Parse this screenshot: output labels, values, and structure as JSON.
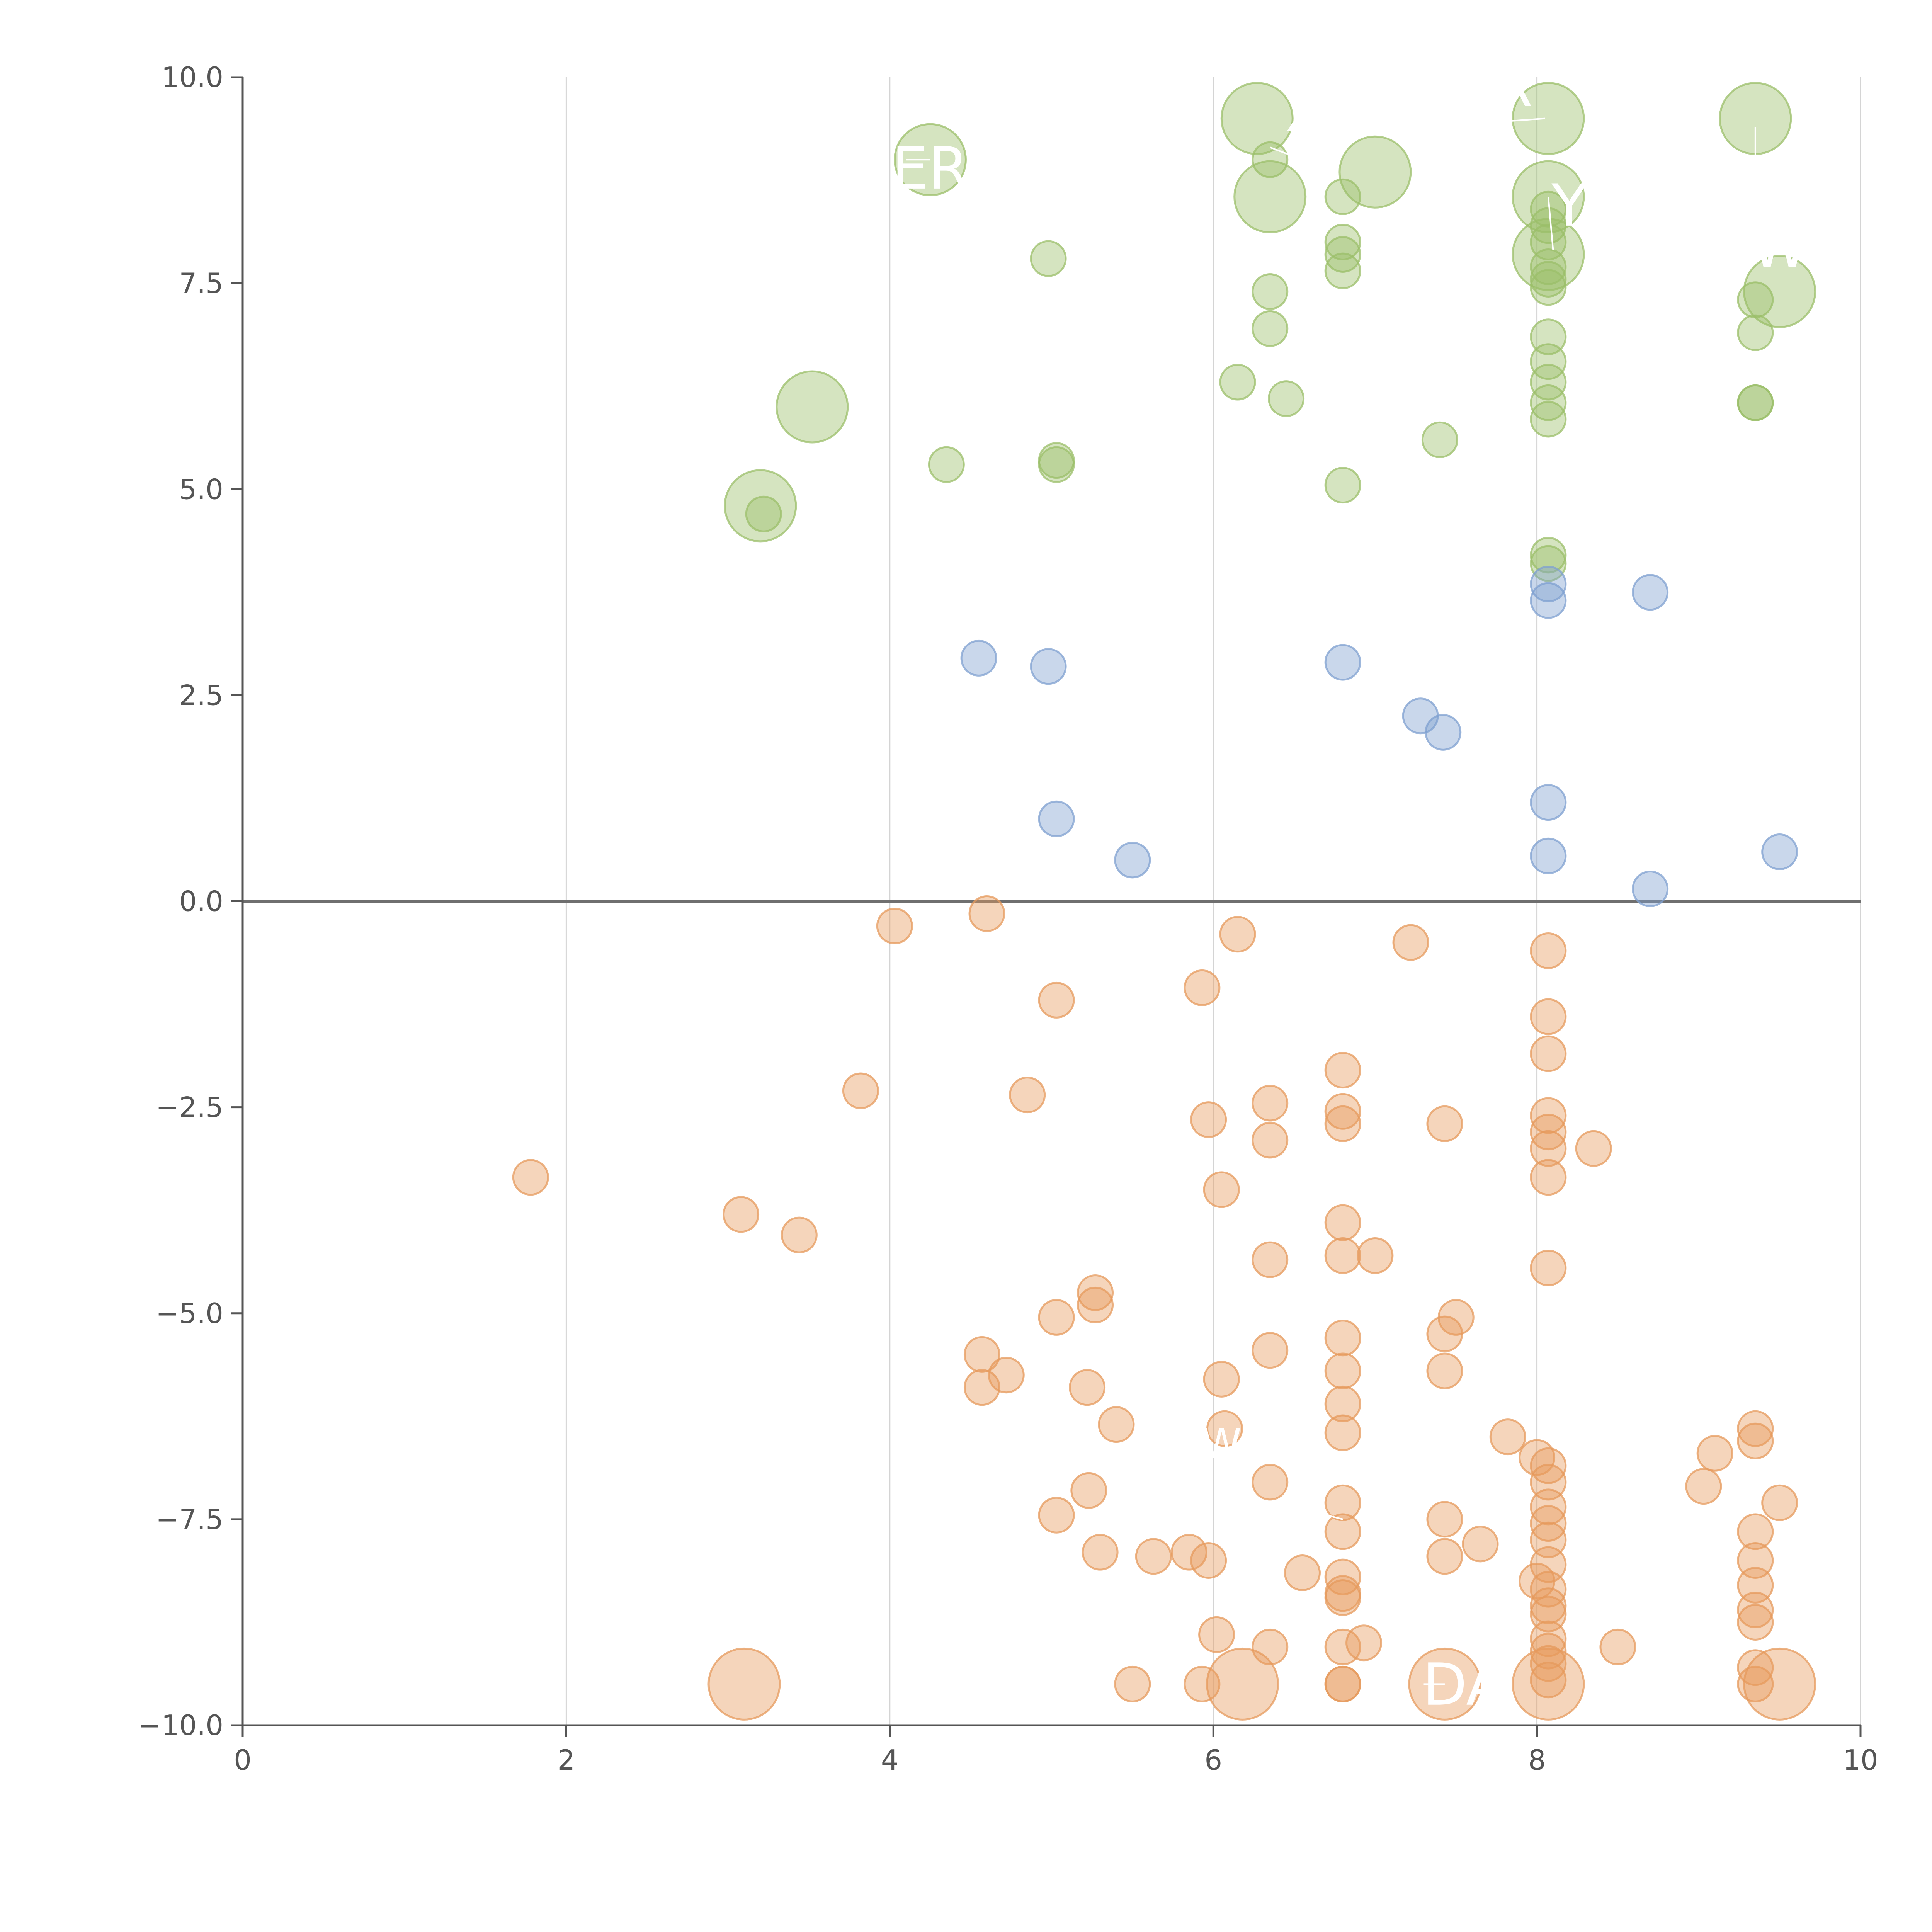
{
  "chart_data": {
    "type": "scatter",
    "title": "",
    "xlabel": "",
    "ylabel": "",
    "xlim": [
      0,
      10
    ],
    "ylim": [
      -10,
      10
    ],
    "x_ticks": [
      "0",
      "2",
      "4",
      "6",
      "8",
      "10"
    ],
    "y_ticks": [
      "10.0",
      "7.5",
      "5.0",
      "2.5",
      "0.0",
      "−2.5",
      "−5.0",
      "−7.5",
      "−10.0"
    ],
    "grid": "vertical",
    "legend": "none",
    "colors": {
      "green": "#9bbf6a",
      "blue": "#7fa0d0",
      "orange": "#e69a5c",
      "axis": "#555555",
      "grid": "#d4d4d4",
      "zero_line": "#6f6f6f"
    },
    "series": [
      {
        "color": "green",
        "points": [
          {
            "x": 4.25,
            "y": 9.0,
            "s": 2
          },
          {
            "x": 6.27,
            "y": 9.5,
            "s": 2
          },
          {
            "x": 6.35,
            "y": 9.0,
            "s": 1
          },
          {
            "x": 6.8,
            "y": 8.55,
            "s": 1
          },
          {
            "x": 6.35,
            "y": 8.55,
            "s": 2
          },
          {
            "x": 7.0,
            "y": 8.85,
            "s": 2
          },
          {
            "x": 8.07,
            "y": 9.5,
            "s": 2
          },
          {
            "x": 9.35,
            "y": 9.5,
            "s": 2
          },
          {
            "x": 8.07,
            "y": 8.55,
            "s": 2
          },
          {
            "x": 8.07,
            "y": 8.4,
            "s": 1
          },
          {
            "x": 8.07,
            "y": 8.2,
            "s": 1
          },
          {
            "x": 8.07,
            "y": 8.0,
            "s": 1
          },
          {
            "x": 8.07,
            "y": 7.85,
            "s": 2
          },
          {
            "x": 8.07,
            "y": 7.7,
            "s": 1
          },
          {
            "x": 8.07,
            "y": 7.55,
            "s": 1
          },
          {
            "x": 8.07,
            "y": 7.45,
            "s": 1
          },
          {
            "x": 6.8,
            "y": 8.0,
            "s": 1
          },
          {
            "x": 6.8,
            "y": 7.85,
            "s": 1
          },
          {
            "x": 6.8,
            "y": 7.65,
            "s": 1
          },
          {
            "x": 4.98,
            "y": 7.8,
            "s": 1
          },
          {
            "x": 6.35,
            "y": 7.4,
            "s": 1
          },
          {
            "x": 6.35,
            "y": 6.95,
            "s": 1
          },
          {
            "x": 9.35,
            "y": 7.3,
            "s": 1
          },
          {
            "x": 9.5,
            "y": 7.4,
            "s": 2
          },
          {
            "x": 9.35,
            "y": 6.9,
            "s": 1
          },
          {
            "x": 8.07,
            "y": 6.85,
            "s": 1
          },
          {
            "x": 8.07,
            "y": 6.55,
            "s": 1
          },
          {
            "x": 8.07,
            "y": 6.3,
            "s": 1
          },
          {
            "x": 8.07,
            "y": 6.05,
            "s": 1
          },
          {
            "x": 8.07,
            "y": 5.85,
            "s": 1
          },
          {
            "x": 6.15,
            "y": 6.3,
            "s": 1
          },
          {
            "x": 6.45,
            "y": 6.1,
            "s": 1
          },
          {
            "x": 9.35,
            "y": 6.05,
            "s": 1
          },
          {
            "x": 9.35,
            "y": 6.05,
            "s": 1
          },
          {
            "x": 3.52,
            "y": 6.0,
            "s": 2
          },
          {
            "x": 7.4,
            "y": 5.6,
            "s": 1
          },
          {
            "x": 4.35,
            "y": 5.3,
            "s": 1
          },
          {
            "x": 5.03,
            "y": 5.35,
            "s": 1
          },
          {
            "x": 5.03,
            "y": 5.3,
            "s": 1
          },
          {
            "x": 6.8,
            "y": 5.05,
            "s": 1
          },
          {
            "x": 3.2,
            "y": 4.8,
            "s": 2
          },
          {
            "x": 3.22,
            "y": 4.7,
            "s": 1
          },
          {
            "x": 8.07,
            "y": 4.2,
            "s": 1
          },
          {
            "x": 8.07,
            "y": 4.1,
            "s": 1
          }
        ]
      },
      {
        "color": "blue",
        "points": [
          {
            "x": 8.07,
            "y": 3.85,
            "s": 1
          },
          {
            "x": 8.07,
            "y": 3.65,
            "s": 1
          },
          {
            "x": 8.7,
            "y": 3.75,
            "s": 1
          },
          {
            "x": 4.55,
            "y": 2.95,
            "s": 1
          },
          {
            "x": 4.98,
            "y": 2.85,
            "s": 1
          },
          {
            "x": 6.8,
            "y": 2.9,
            "s": 1
          },
          {
            "x": 7.28,
            "y": 2.25,
            "s": 1
          },
          {
            "x": 7.42,
            "y": 2.05,
            "s": 1
          },
          {
            "x": 8.07,
            "y": 1.2,
            "s": 1
          },
          {
            "x": 5.03,
            "y": 1.0,
            "s": 1
          },
          {
            "x": 5.5,
            "y": 0.5,
            "s": 1
          },
          {
            "x": 8.07,
            "y": 0.55,
            "s": 1
          },
          {
            "x": 9.5,
            "y": 0.6,
            "s": 1
          },
          {
            "x": 8.7,
            "y": 0.15,
            "s": 1
          }
        ]
      },
      {
        "color": "orange",
        "points": [
          {
            "x": 4.03,
            "y": -0.3,
            "s": 1
          },
          {
            "x": 4.6,
            "y": -0.15,
            "s": 1
          },
          {
            "x": 6.15,
            "y": -0.4,
            "s": 1
          },
          {
            "x": 7.22,
            "y": -0.5,
            "s": 1
          },
          {
            "x": 8.07,
            "y": -0.6,
            "s": 1
          },
          {
            "x": 5.93,
            "y": -1.05,
            "s": 1
          },
          {
            "x": 5.03,
            "y": -1.2,
            "s": 1
          },
          {
            "x": 8.07,
            "y": -1.4,
            "s": 1
          },
          {
            "x": 8.07,
            "y": -1.85,
            "s": 1
          },
          {
            "x": 6.8,
            "y": -2.05,
            "s": 1
          },
          {
            "x": 3.82,
            "y": -2.3,
            "s": 1
          },
          {
            "x": 4.85,
            "y": -2.35,
            "s": 1
          },
          {
            "x": 6.35,
            "y": -2.45,
            "s": 1
          },
          {
            "x": 6.8,
            "y": -2.55,
            "s": 1
          },
          {
            "x": 6.8,
            "y": -2.7,
            "s": 1
          },
          {
            "x": 5.97,
            "y": -2.65,
            "s": 1
          },
          {
            "x": 7.43,
            "y": -2.7,
            "s": 1
          },
          {
            "x": 8.07,
            "y": -2.6,
            "s": 1
          },
          {
            "x": 8.07,
            "y": -2.8,
            "s": 1
          },
          {
            "x": 6.35,
            "y": -2.9,
            "s": 1
          },
          {
            "x": 8.07,
            "y": -3.0,
            "s": 1
          },
          {
            "x": 8.35,
            "y": -3.0,
            "s": 1
          },
          {
            "x": 1.78,
            "y": -3.35,
            "s": 1
          },
          {
            "x": 8.07,
            "y": -3.35,
            "s": 1
          },
          {
            "x": 6.05,
            "y": -3.5,
            "s": 1
          },
          {
            "x": 3.08,
            "y": -3.8,
            "s": 1
          },
          {
            "x": 3.44,
            "y": -4.05,
            "s": 1
          },
          {
            "x": 6.8,
            "y": -3.9,
            "s": 1
          },
          {
            "x": 6.8,
            "y": -4.3,
            "s": 1
          },
          {
            "x": 7.0,
            "y": -4.3,
            "s": 1
          },
          {
            "x": 6.35,
            "y": -4.35,
            "s": 1
          },
          {
            "x": 8.07,
            "y": -4.45,
            "s": 1
          },
          {
            "x": 5.27,
            "y": -4.75,
            "s": 1
          },
          {
            "x": 5.27,
            "y": -4.9,
            "s": 1
          },
          {
            "x": 5.03,
            "y": -5.05,
            "s": 1
          },
          {
            "x": 7.5,
            "y": -5.05,
            "s": 1
          },
          {
            "x": 7.43,
            "y": -5.25,
            "s": 1
          },
          {
            "x": 6.8,
            "y": -5.3,
            "s": 1
          },
          {
            "x": 6.35,
            "y": -5.45,
            "s": 1
          },
          {
            "x": 4.57,
            "y": -5.5,
            "s": 1
          },
          {
            "x": 7.43,
            "y": -5.7,
            "s": 1
          },
          {
            "x": 6.8,
            "y": -5.7,
            "s": 1
          },
          {
            "x": 4.72,
            "y": -5.75,
            "s": 1
          },
          {
            "x": 6.05,
            "y": -5.8,
            "s": 1
          },
          {
            "x": 4.57,
            "y": -5.9,
            "s": 1
          },
          {
            "x": 5.22,
            "y": -5.9,
            "s": 1
          },
          {
            "x": 6.8,
            "y": -6.1,
            "s": 1
          },
          {
            "x": 5.4,
            "y": -6.35,
            "s": 1
          },
          {
            "x": 6.8,
            "y": -6.45,
            "s": 1
          },
          {
            "x": 6.07,
            "y": -6.4,
            "s": 1
          },
          {
            "x": 9.35,
            "y": -6.4,
            "s": 1
          },
          {
            "x": 9.35,
            "y": -6.55,
            "s": 1
          },
          {
            "x": 7.82,
            "y": -6.5,
            "s": 1
          },
          {
            "x": 9.1,
            "y": -6.7,
            "s": 1
          },
          {
            "x": 8.0,
            "y": -6.75,
            "s": 1
          },
          {
            "x": 8.07,
            "y": -6.85,
            "s": 1
          },
          {
            "x": 8.07,
            "y": -7.05,
            "s": 1
          },
          {
            "x": 6.35,
            "y": -7.05,
            "s": 1
          },
          {
            "x": 5.23,
            "y": -7.15,
            "s": 1
          },
          {
            "x": 9.03,
            "y": -7.1,
            "s": 1
          },
          {
            "x": 9.5,
            "y": -7.3,
            "s": 1
          },
          {
            "x": 6.8,
            "y": -7.3,
            "s": 1
          },
          {
            "x": 8.07,
            "y": -7.35,
            "s": 1
          },
          {
            "x": 5.03,
            "y": -7.45,
            "s": 1
          },
          {
            "x": 7.43,
            "y": -7.5,
            "s": 1
          },
          {
            "x": 8.07,
            "y": -7.55,
            "s": 1
          },
          {
            "x": 8.07,
            "y": -7.75,
            "s": 1
          },
          {
            "x": 6.8,
            "y": -7.65,
            "s": 1
          },
          {
            "x": 9.35,
            "y": -7.65,
            "s": 1
          },
          {
            "x": 7.65,
            "y": -7.8,
            "s": 1
          },
          {
            "x": 5.3,
            "y": -7.9,
            "s": 1
          },
          {
            "x": 5.63,
            "y": -7.95,
            "s": 1
          },
          {
            "x": 5.85,
            "y": -7.9,
            "s": 1
          },
          {
            "x": 5.97,
            "y": -8.0,
            "s": 1
          },
          {
            "x": 7.43,
            "y": -7.95,
            "s": 1
          },
          {
            "x": 8.07,
            "y": -8.05,
            "s": 1
          },
          {
            "x": 9.35,
            "y": -8.0,
            "s": 1
          },
          {
            "x": 6.55,
            "y": -8.15,
            "s": 1
          },
          {
            "x": 6.8,
            "y": -8.2,
            "s": 1
          },
          {
            "x": 8.0,
            "y": -8.25,
            "s": 1
          },
          {
            "x": 8.07,
            "y": -8.35,
            "s": 1
          },
          {
            "x": 9.35,
            "y": -8.3,
            "s": 1
          },
          {
            "x": 6.8,
            "y": -8.4,
            "s": 1
          },
          {
            "x": 6.8,
            "y": -8.45,
            "s": 1
          },
          {
            "x": 8.07,
            "y": -8.55,
            "s": 1
          },
          {
            "x": 9.35,
            "y": -8.6,
            "s": 1
          },
          {
            "x": 8.07,
            "y": -8.65,
            "s": 1
          },
          {
            "x": 9.35,
            "y": -8.75,
            "s": 1
          },
          {
            "x": 6.02,
            "y": -8.9,
            "s": 1
          },
          {
            "x": 6.35,
            "y": -9.05,
            "s": 1
          },
          {
            "x": 6.8,
            "y": -9.05,
            "s": 1
          },
          {
            "x": 6.93,
            "y": -9.0,
            "s": 1
          },
          {
            "x": 8.07,
            "y": -8.95,
            "s": 1
          },
          {
            "x": 8.07,
            "y": -9.1,
            "s": 1
          },
          {
            "x": 8.5,
            "y": -9.05,
            "s": 1
          },
          {
            "x": 9.35,
            "y": -9.3,
            "s": 1
          },
          {
            "x": 8.07,
            "y": -9.25,
            "s": 1
          },
          {
            "x": 3.1,
            "y": -9.5,
            "s": 2
          },
          {
            "x": 5.5,
            "y": -9.5,
            "s": 1
          },
          {
            "x": 5.93,
            "y": -9.5,
            "s": 1
          },
          {
            "x": 6.18,
            "y": -9.5,
            "s": 2
          },
          {
            "x": 6.8,
            "y": -9.5,
            "s": 1
          },
          {
            "x": 6.8,
            "y": -9.5,
            "s": 1
          },
          {
            "x": 7.43,
            "y": -9.5,
            "s": 2
          },
          {
            "x": 8.07,
            "y": -9.5,
            "s": 2
          },
          {
            "x": 8.07,
            "y": -9.45,
            "s": 1
          },
          {
            "x": 9.35,
            "y": -9.5,
            "s": 1
          },
          {
            "x": 9.5,
            "y": -9.5,
            "s": 2
          }
        ]
      }
    ],
    "annotations": [
      {
        "text": "R",
        "x": 7.85,
        "y": 9.65,
        "size": 1,
        "lx1": 7.7,
        "ly1": 9.45,
        "lx2": 8.05,
        "ly2": 9.5
      },
      {
        "text": "X C",
        "x": 6.75,
        "y": 9.35,
        "size": 1,
        "lx1": 6.35,
        "ly1": 9.15,
        "lx2": 6.75,
        "ly2": 8.85
      },
      {
        "text": "ER",
        "x": 4.25,
        "y": 8.65,
        "size": 1,
        "lx1": 4.1,
        "ly1": 9.0,
        "lx2": 4.25,
        "ly2": 9.0
      },
      {
        "text": "Y",
        "x": 8.2,
        "y": 8.2,
        "size": 1,
        "lx1": 8.07,
        "ly1": 8.55,
        "lx2": 8.1,
        "ly2": 7.9
      },
      {
        "text": "W",
        "x": 9.5,
        "y": 7.7,
        "size": 1,
        "lx1": 9.35,
        "ly1": 9.4,
        "lx2": 9.35,
        "ly2": 9.0
      },
      {
        "text": "DA",
        "x": 7.55,
        "y": -9.75,
        "size": 1,
        "lx1": 7.3,
        "ly1": -9.5,
        "lx2": 7.43,
        "ly2": -9.5
      },
      {
        "text": "W",
        "x": 6.05,
        "y": -6.75,
        "size": 0.7,
        "lx1": 6.7,
        "ly1": -7.45,
        "lx2": 6.8,
        "ly2": -7.5
      }
    ]
  }
}
